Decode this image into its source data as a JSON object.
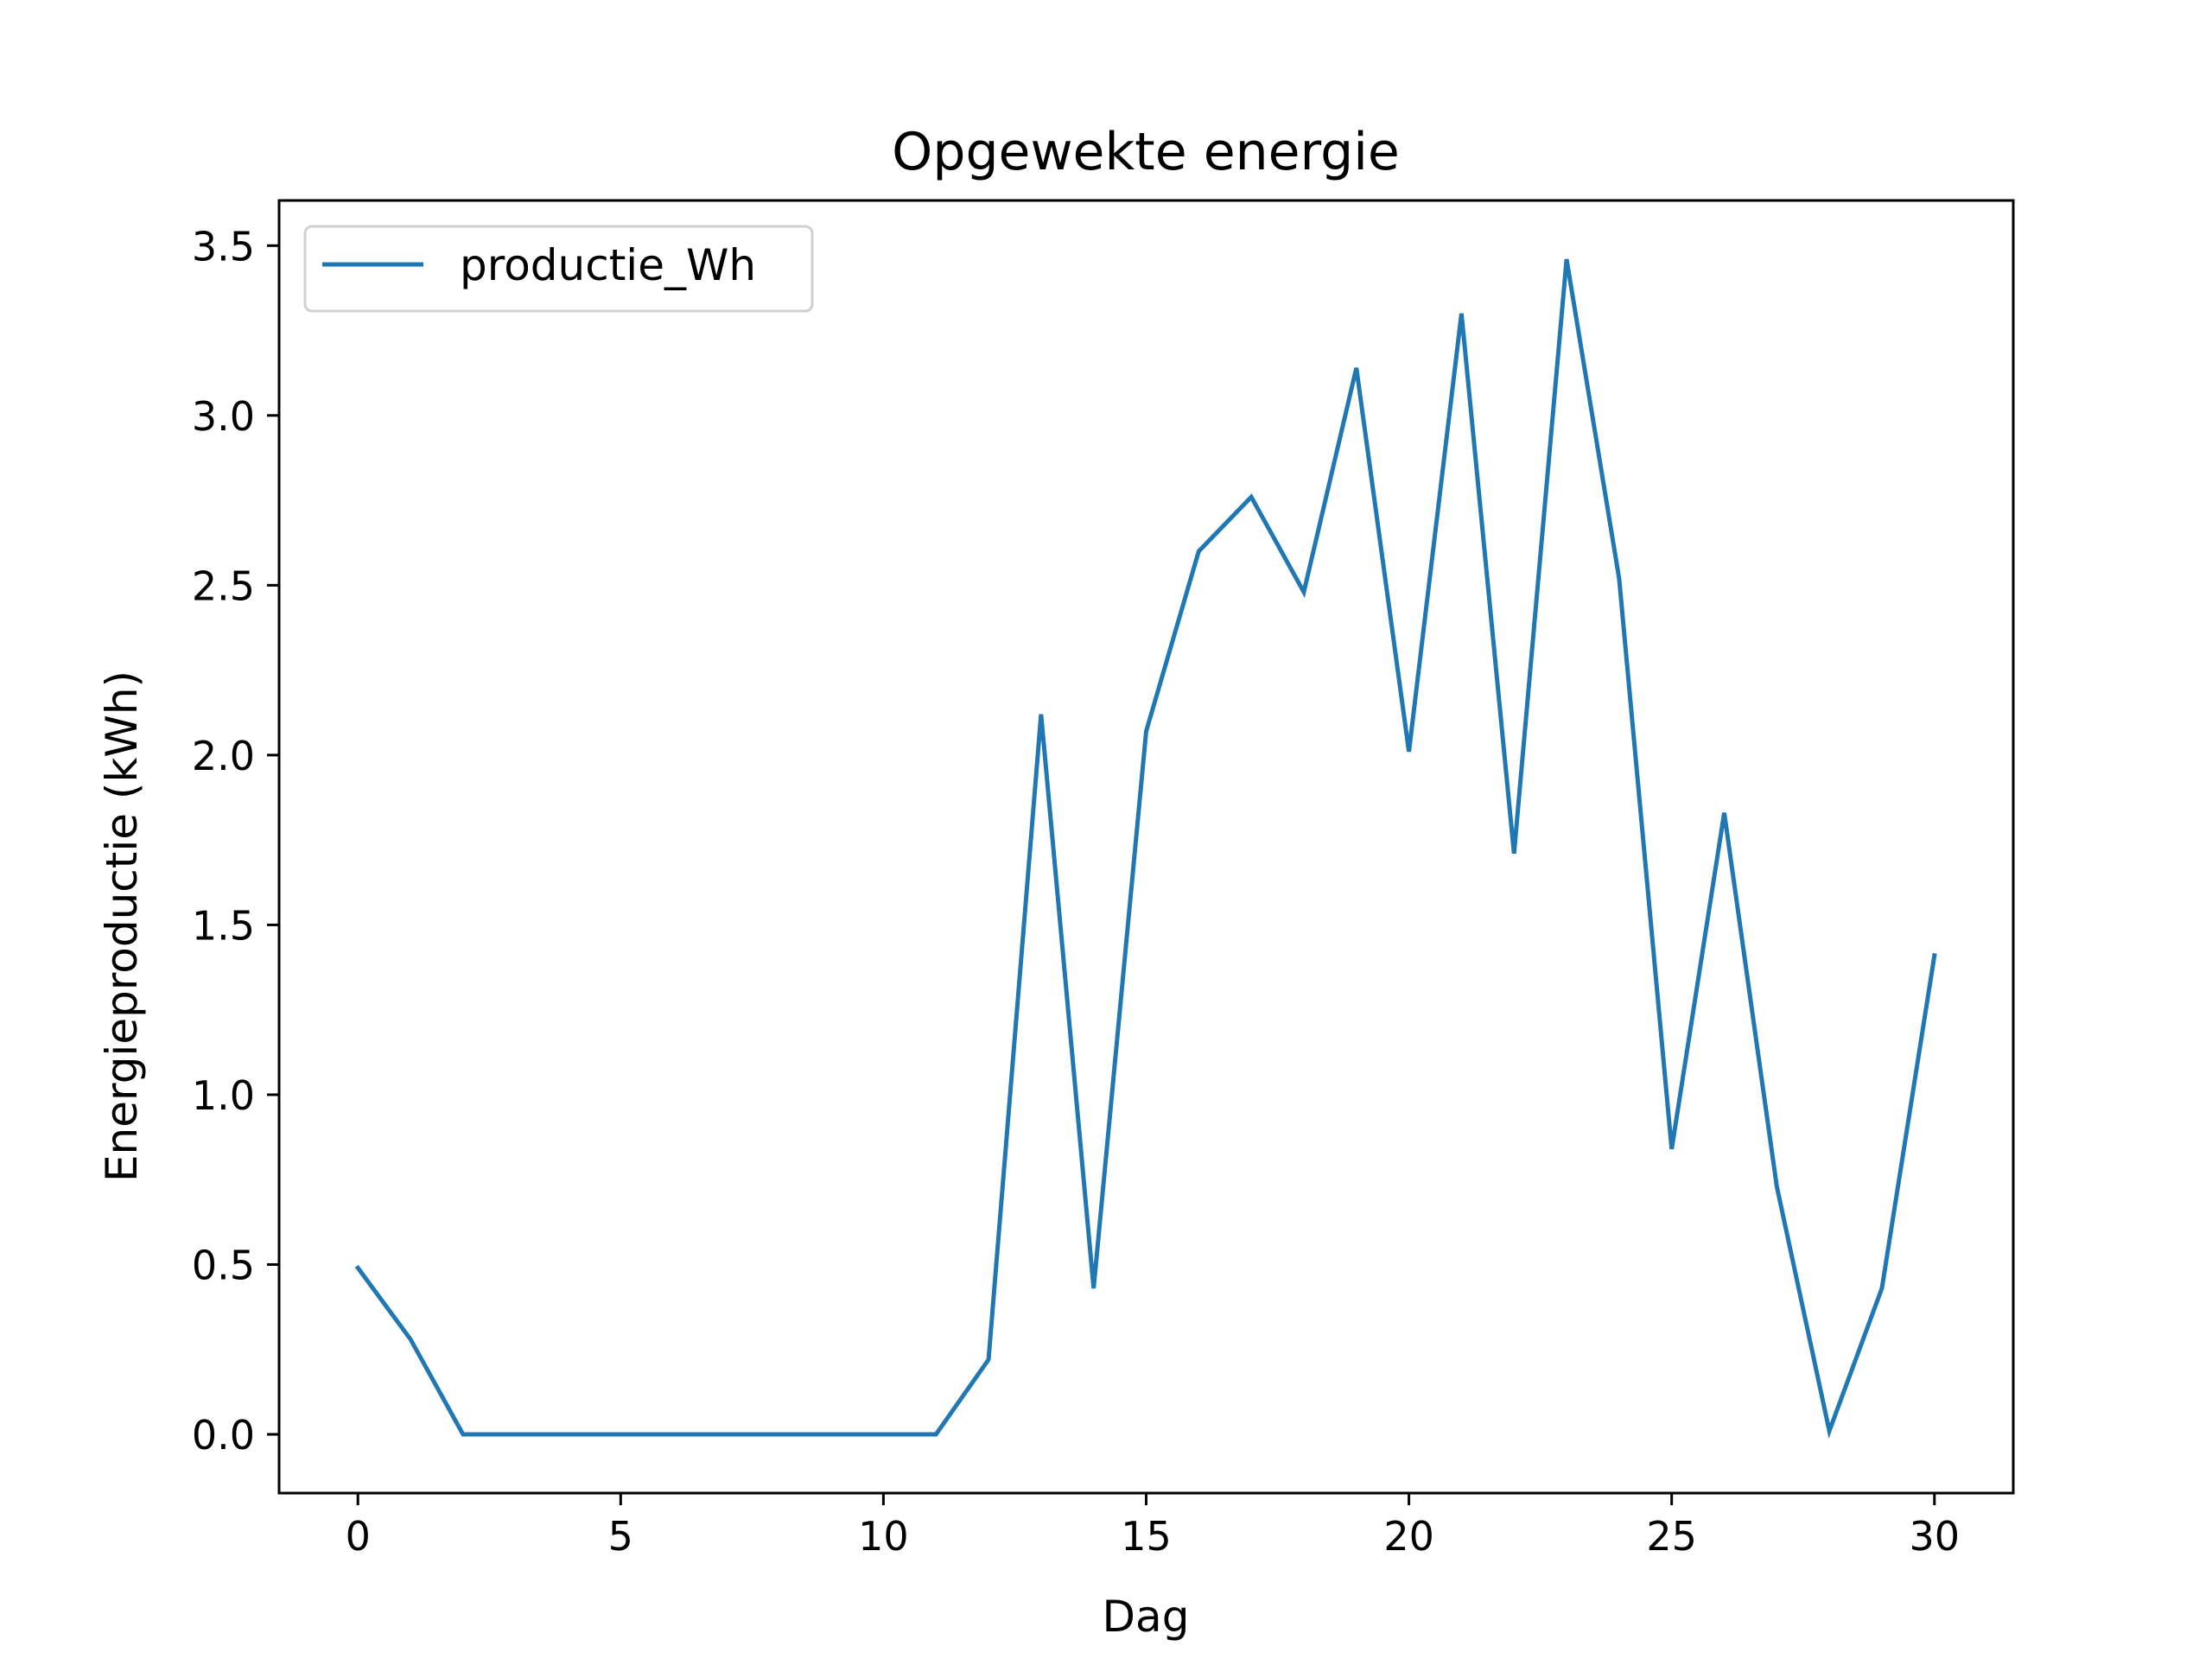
{
  "chart_data": {
    "type": "line",
    "title": "Opgewekte energie",
    "xlabel": "Dag",
    "ylabel": "Energieproductie (kWh)",
    "xlim": [
      -1.5,
      31.5
    ],
    "ylim": [
      -0.173,
      3.633
    ],
    "xticks": [
      0,
      5,
      10,
      15,
      20,
      25,
      30
    ],
    "xtick_labels": [
      "0",
      "5",
      "10",
      "15",
      "20",
      "25",
      "30"
    ],
    "yticks": [
      0.0,
      0.5,
      1.0,
      1.5,
      2.0,
      2.5,
      3.0,
      3.5
    ],
    "ytick_labels": [
      "0.0",
      "0.5",
      "1.0",
      "1.5",
      "2.0",
      "2.5",
      "3.0",
      "3.5"
    ],
    "grid": false,
    "legend": "upper-left",
    "series": [
      {
        "name": "productie_Wh",
        "color": "#1f77b4",
        "x": [
          0,
          1,
          2,
          3,
          4,
          5,
          6,
          7,
          8,
          9,
          10,
          11,
          12,
          13,
          14,
          15,
          16,
          17,
          18,
          19,
          20,
          21,
          22,
          23,
          24,
          25,
          26,
          27,
          28,
          29,
          30
        ],
        "values": [
          0.49,
          0.28,
          0.0,
          0.0,
          0.0,
          0.0,
          0.0,
          0.0,
          0.0,
          0.0,
          0.0,
          0.0,
          0.22,
          2.12,
          0.43,
          2.07,
          2.6,
          2.76,
          2.48,
          3.14,
          2.01,
          3.3,
          1.71,
          3.46,
          2.52,
          0.84,
          1.83,
          0.73,
          0.01,
          0.43,
          1.41
        ]
      }
    ]
  }
}
